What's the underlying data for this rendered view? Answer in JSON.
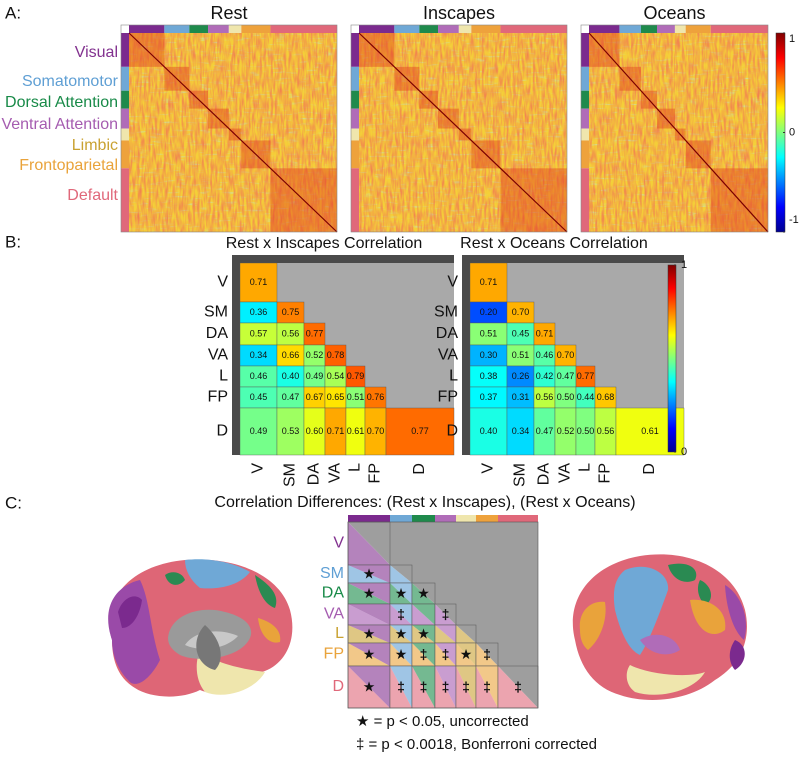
{
  "panel_a": {
    "label": "A:",
    "matrices": [
      {
        "title": "Rest"
      },
      {
        "title": "Inscapes"
      },
      {
        "title": "Oceans"
      }
    ],
    "networks": [
      {
        "name": "Visual",
        "color": "#82318f",
        "bar": "#7b2a8e"
      },
      {
        "name": "Somatomotor",
        "color": "#5f9fd4",
        "bar": "#6fa8d6"
      },
      {
        "name": "Dorsal Attention",
        "color": "#188a48",
        "bar": "#1f8a4c"
      },
      {
        "name": "Ventral Attention",
        "color": "#a55cb0",
        "bar": "#b06cb8"
      },
      {
        "name": "Limbic",
        "color": "#c9a232",
        "bar": "#efe6ad"
      },
      {
        "name": "Frontoparietal",
        "color": "#e9a33b",
        "bar": "#eea23c"
      },
      {
        "name": "Default",
        "color": "#e0687a",
        "bar": "#e0687a"
      }
    ],
    "colorbar": {
      "lim": [
        -1,
        1
      ],
      "ticks": [
        1,
        0,
        -1
      ]
    }
  },
  "chart_data": [
    {
      "type": "heatmap",
      "title": "Rest x Inscapes Correlation",
      "rows": [
        "V",
        "SM",
        "DA",
        "VA",
        "L",
        "FP",
        "D"
      ],
      "columns": [
        "V",
        "SM",
        "DA",
        "VA",
        "L",
        "FP",
        "D"
      ],
      "zlim": [
        0,
        1
      ],
      "values": [
        [
          0.71,
          null,
          null,
          null,
          null,
          null,
          null
        ],
        [
          0.36,
          0.75,
          null,
          null,
          null,
          null,
          null
        ],
        [
          0.57,
          0.56,
          0.77,
          null,
          null,
          null,
          null
        ],
        [
          0.34,
          0.66,
          0.52,
          0.78,
          null,
          null,
          null
        ],
        [
          0.46,
          0.4,
          0.49,
          0.54,
          0.79,
          null,
          null
        ],
        [
          0.45,
          0.47,
          0.67,
          0.65,
          0.51,
          0.76,
          null
        ],
        [
          0.49,
          0.53,
          0.6,
          0.71,
          0.61,
          0.7,
          0.77
        ]
      ],
      "value_labels": [
        [
          "0.71",
          null,
          null,
          null,
          null,
          null,
          null
        ],
        [
          "0.36",
          "0.75",
          null,
          null,
          null,
          null,
          null
        ],
        [
          "0.57",
          "0.56",
          "0.77",
          null,
          null,
          null,
          null
        ],
        [
          "0.34",
          "0.66",
          "0.52",
          "0.78",
          null,
          null,
          null
        ],
        [
          "0.46",
          "0.40",
          "0.49",
          "0.54",
          "0.79",
          null,
          null
        ],
        [
          "0.45",
          "0.47",
          "0.67",
          "0.65",
          "0.51",
          "0.76",
          null
        ],
        [
          "0.49",
          "0.53",
          "0.60",
          "0.71",
          "0.61",
          "0.70",
          "0.77"
        ]
      ]
    },
    {
      "type": "heatmap",
      "title": "Rest x Oceans Correlation",
      "rows": [
        "V",
        "SM",
        "DA",
        "VA",
        "L",
        "FP",
        "D"
      ],
      "columns": [
        "V",
        "SM",
        "DA",
        "VA",
        "L",
        "FP",
        "D"
      ],
      "zlim": [
        0,
        1
      ],
      "values": [
        [
          0.71,
          null,
          null,
          null,
          null,
          null,
          null
        ],
        [
          0.2,
          0.7,
          null,
          null,
          null,
          null,
          null
        ],
        [
          0.51,
          0.45,
          0.71,
          null,
          null,
          null,
          null
        ],
        [
          0.3,
          0.51,
          0.46,
          0.7,
          null,
          null,
          null
        ],
        [
          0.38,
          0.26,
          0.42,
          0.47,
          0.77,
          null,
          null
        ],
        [
          0.37,
          0.31,
          0.56,
          0.5,
          0.44,
          0.68,
          null
        ],
        [
          0.4,
          0.34,
          0.47,
          0.52,
          0.5,
          0.56,
          0.61
        ]
      ],
      "value_labels": [
        [
          "0.71",
          null,
          null,
          null,
          null,
          null,
          null
        ],
        [
          "0.20",
          "0.70",
          null,
          null,
          null,
          null,
          null
        ],
        [
          "0.51",
          "0.45",
          "0.71",
          null,
          null,
          null,
          null
        ],
        [
          "0.30",
          "0.51",
          "0.46",
          "0.70",
          null,
          null,
          null
        ],
        [
          "0.38",
          "0.26",
          "0.42",
          "0.47",
          "0.77",
          null,
          null
        ],
        [
          "0.37",
          "0.31",
          "0.56",
          "0.50",
          "0.44",
          "0.68",
          null
        ],
        [
          "0.40",
          "0.34",
          "0.47",
          "0.52",
          "0.50",
          "0.56",
          "0.61"
        ]
      ]
    }
  ],
  "panel_b": {
    "label": "B:",
    "colorbar": {
      "lim": [
        0,
        1
      ],
      "ticks": [
        1,
        0
      ]
    }
  },
  "panel_c": {
    "label": "C:",
    "title": "Correlation Differences: (Rest x Inscapes), (Rest x Oceans)",
    "rows": [
      {
        "label": "V",
        "color": "#82318f"
      },
      {
        "label": "SM",
        "color": "#5f9fd4"
      },
      {
        "label": "DA",
        "color": "#188a48"
      },
      {
        "label": "VA",
        "color": "#a55cb0"
      },
      {
        "label": "L",
        "color": "#c9a232"
      },
      {
        "label": "FP",
        "color": "#e9a33b"
      },
      {
        "label": "D",
        "color": "#e0687a"
      }
    ],
    "symbols": [
      [
        null,
        null,
        null,
        null,
        null,
        null,
        null
      ],
      [
        "★",
        null,
        null,
        null,
        null,
        null,
        null
      ],
      [
        "★",
        "★",
        "★",
        null,
        null,
        null,
        null
      ],
      [
        null,
        "‡",
        null,
        "‡",
        null,
        null,
        null
      ],
      [
        "★",
        "★",
        "★",
        null,
        null,
        null,
        null
      ],
      [
        "★",
        "★",
        "‡",
        "‡",
        "★",
        "‡",
        null
      ],
      [
        "★",
        "‡",
        "‡",
        "‡",
        "‡",
        "‡",
        "‡"
      ]
    ],
    "legend": [
      "★ = p < 0.05, uncorrected",
      "‡ = p < 0.0018, Bonferroni corrected"
    ]
  }
}
